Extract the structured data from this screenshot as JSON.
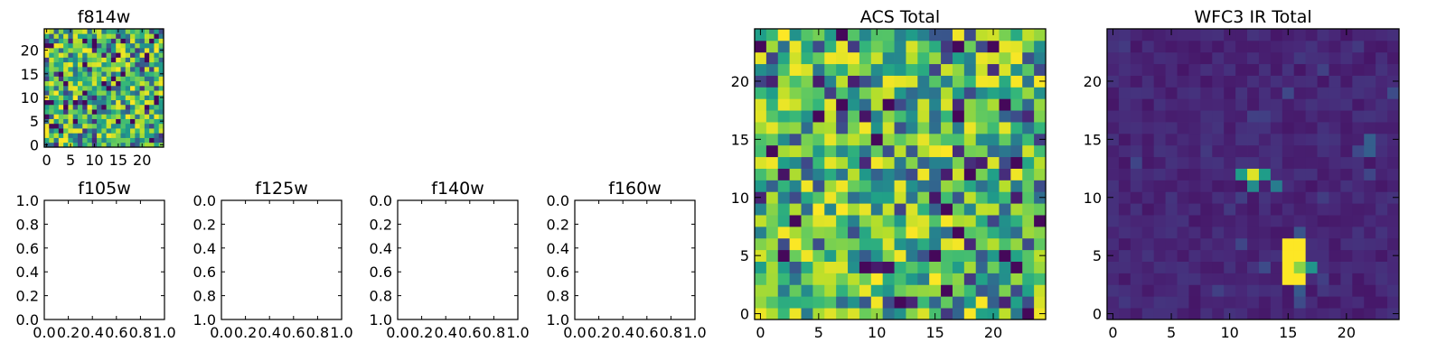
{
  "chart_data": [
    {
      "type": "heatmap",
      "title": "f814w",
      "grid_size": [
        25,
        25
      ],
      "xlim": [
        -0.5,
        24.5
      ],
      "ylim": [
        -0.5,
        24.5
      ],
      "xticks": [
        0,
        5,
        10,
        15,
        20
      ],
      "xtick_labels": [
        "0",
        "5",
        "10",
        "15",
        "20"
      ],
      "yticks": [
        0,
        5,
        10,
        15,
        20
      ],
      "ytick_labels": [
        "0",
        "5",
        "10",
        "15",
        "20"
      ],
      "colormap": "viridis",
      "pattern": "random noise",
      "value_range": [
        0,
        1
      ],
      "bright_blocks": [],
      "seed": 814
    },
    {
      "type": "empty",
      "title": "f105w",
      "xlim": [
        0,
        1
      ],
      "ylim": [
        0,
        1
      ],
      "xticks": [
        0,
        0.2,
        0.4,
        0.6,
        0.8,
        1.0
      ],
      "xtick_labels": [
        "0.0",
        "0.2",
        "0.4",
        "0.6",
        "0.8",
        "1.0"
      ],
      "yticks": [
        0,
        0.2,
        0.4,
        0.6,
        0.8,
        1.0
      ],
      "ytick_labels": [
        "0.0",
        "0.2",
        "0.4",
        "0.6",
        "0.8",
        "1.0"
      ]
    },
    {
      "type": "empty",
      "title": "f125w",
      "xlim": [
        0,
        1
      ],
      "ylim": [
        0,
        1
      ],
      "xticks": [
        0,
        0.2,
        0.4,
        0.6,
        0.8,
        1.0
      ],
      "xtick_labels": [
        "0.0",
        "0.2",
        "0.4",
        "0.6",
        "0.8",
        "1.0"
      ],
      "yticks": [
        0,
        0.2,
        0.4,
        0.6,
        0.8,
        1.0
      ],
      "ytick_labels": [
        "1.0",
        "0.8",
        "0.6",
        "0.4",
        "0.2",
        "0.0"
      ]
    },
    {
      "type": "empty",
      "title": "f140w",
      "xlim": [
        0,
        1
      ],
      "ylim": [
        0,
        1
      ],
      "xticks": [
        0,
        0.2,
        0.4,
        0.6,
        0.8,
        1.0
      ],
      "xtick_labels": [
        "0.0",
        "0.2",
        "0.4",
        "0.6",
        "0.8",
        "1.0"
      ],
      "yticks": [
        0,
        0.2,
        0.4,
        0.6,
        0.8,
        1.0
      ],
      "ytick_labels": [
        "1.0",
        "0.8",
        "0.6",
        "0.4",
        "0.2",
        "0.0"
      ]
    },
    {
      "type": "empty",
      "title": "f160w",
      "xlim": [
        0,
        1
      ],
      "ylim": [
        0,
        1
      ],
      "xticks": [
        0,
        0.2,
        0.4,
        0.6,
        0.8,
        1.0
      ],
      "xtick_labels": [
        "0.0",
        "0.2",
        "0.4",
        "0.6",
        "0.8",
        "1.0"
      ],
      "yticks": [
        0,
        0.2,
        0.4,
        0.6,
        0.8,
        1.0
      ],
      "ytick_labels": [
        "1.0",
        "0.8",
        "0.6",
        "0.4",
        "0.2",
        "0.0"
      ]
    },
    {
      "type": "heatmap",
      "title": "ACS Total",
      "grid_size": [
        25,
        25
      ],
      "xlim": [
        -0.5,
        24.5
      ],
      "ylim": [
        -0.5,
        24.5
      ],
      "xticks": [
        0,
        5,
        10,
        15,
        20
      ],
      "xtick_labels": [
        "0",
        "5",
        "10",
        "15",
        "20"
      ],
      "yticks": [
        0,
        5,
        10,
        15,
        20
      ],
      "ytick_labels": [
        "0",
        "5",
        "10",
        "15",
        "20"
      ],
      "colormap": "viridis",
      "pattern": "random noise",
      "value_range": [
        0,
        1
      ],
      "bright_blocks": [],
      "seed": 2718
    },
    {
      "type": "heatmap",
      "title": "WFC3 IR Total",
      "grid_size": [
        25,
        25
      ],
      "xlim": [
        -0.5,
        24.5
      ],
      "ylim": [
        -0.5,
        24.5
      ],
      "xticks": [
        0,
        5,
        10,
        15,
        20
      ],
      "xtick_labels": [
        "0",
        "5",
        "10",
        "15",
        "20"
      ],
      "yticks": [
        0,
        5,
        10,
        15,
        20
      ],
      "ytick_labels": [
        "0",
        "5",
        "10",
        "15",
        "20"
      ],
      "colormap": "viridis",
      "pattern": "low background with bright sources",
      "value_range": [
        0,
        1
      ],
      "background_level": 0.06,
      "bright_blocks": [
        {
          "x": [
            15,
            16
          ],
          "y": [
            3,
            6
          ],
          "value": 1.0
        },
        {
          "x": [
            16,
            16
          ],
          "y": [
            4,
            4
          ],
          "value": 0.82
        },
        {
          "x": [
            17,
            17
          ],
          "y": [
            4,
            4
          ],
          "value": 0.52
        },
        {
          "x": [
            12,
            12
          ],
          "y": [
            12,
            12
          ],
          "value": 0.95
        },
        {
          "x": [
            11,
            11
          ],
          "y": [
            12,
            12
          ],
          "value": 0.55
        },
        {
          "x": [
            13,
            13
          ],
          "y": [
            12,
            12
          ],
          "value": 0.55
        },
        {
          "x": [
            12,
            12
          ],
          "y": [
            11,
            11
          ],
          "value": 0.48
        },
        {
          "x": [
            14,
            14
          ],
          "y": [
            11,
            11
          ],
          "value": 0.42
        },
        {
          "x": [
            22,
            22
          ],
          "y": [
            14,
            15
          ],
          "value": 0.3
        },
        {
          "x": [
            21,
            21
          ],
          "y": [
            14,
            14
          ],
          "value": 0.22
        },
        {
          "x": [
            16,
            16
          ],
          "y": [
            2,
            2
          ],
          "value": 0.28
        },
        {
          "x": [
            16,
            16
          ],
          "y": [
            7,
            7
          ],
          "value": 0.26
        }
      ],
      "seed": 3141
    }
  ]
}
